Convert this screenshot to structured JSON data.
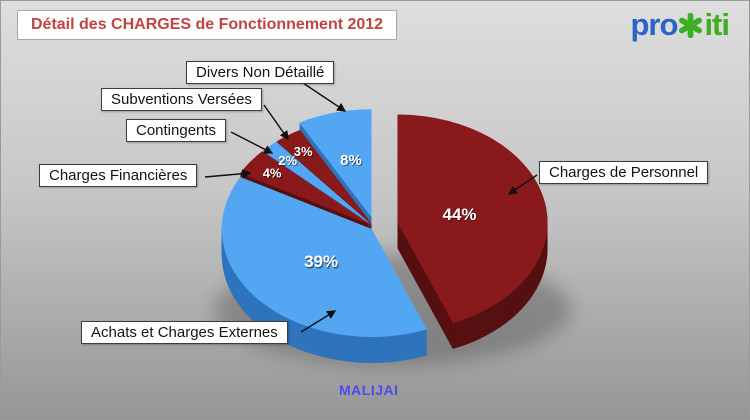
{
  "header": {
    "title": "Détail des CHARGES de Fonctionnement 2012",
    "title_color": "#c24343",
    "logo": {
      "text_left": "pro",
      "text_right": "iti",
      "x_icon": "green-starburst-x",
      "blue": "#2b63c9",
      "green": "#3dae21"
    }
  },
  "footer": {
    "commune": "MALIJAI",
    "color": "#4b4bee"
  },
  "chart_data": {
    "type": "pie",
    "title": "Détail des CHARGES de Fonctionnement 2012",
    "effect": "3d-exploded",
    "start_angle_deg": 0,
    "direction": "clockwise",
    "legend_position": "callouts",
    "unit": "%",
    "slices": [
      {
        "label": "Charges de Personnel",
        "value": 44,
        "percent_label": "44%",
        "color": "#8a191c",
        "side_color": "#571012",
        "exploded": true
      },
      {
        "label": "Achats et Charges Externes",
        "value": 39,
        "percent_label": "39%",
        "color": "#53a6f1",
        "side_color": "#2e74bd",
        "exploded": false
      },
      {
        "label": "Charges Financières",
        "value": 4,
        "percent_label": "4%",
        "color": "#8a191c",
        "side_color": "#571012",
        "exploded": false
      },
      {
        "label": "Contingents",
        "value": 2,
        "percent_label": "2%",
        "color": "#53a6f1",
        "side_color": "#2e74bd",
        "exploded": false
      },
      {
        "label": "Subventions Versées",
        "value": 3,
        "percent_label": "3%",
        "color": "#8a191c",
        "side_color": "#571012",
        "exploded": false
      },
      {
        "label": "Divers Non Détaillé",
        "value": 8,
        "percent_label": "8%",
        "color": "#53a6f1",
        "side_color": "#2e74bd",
        "exploded": true
      }
    ]
  }
}
